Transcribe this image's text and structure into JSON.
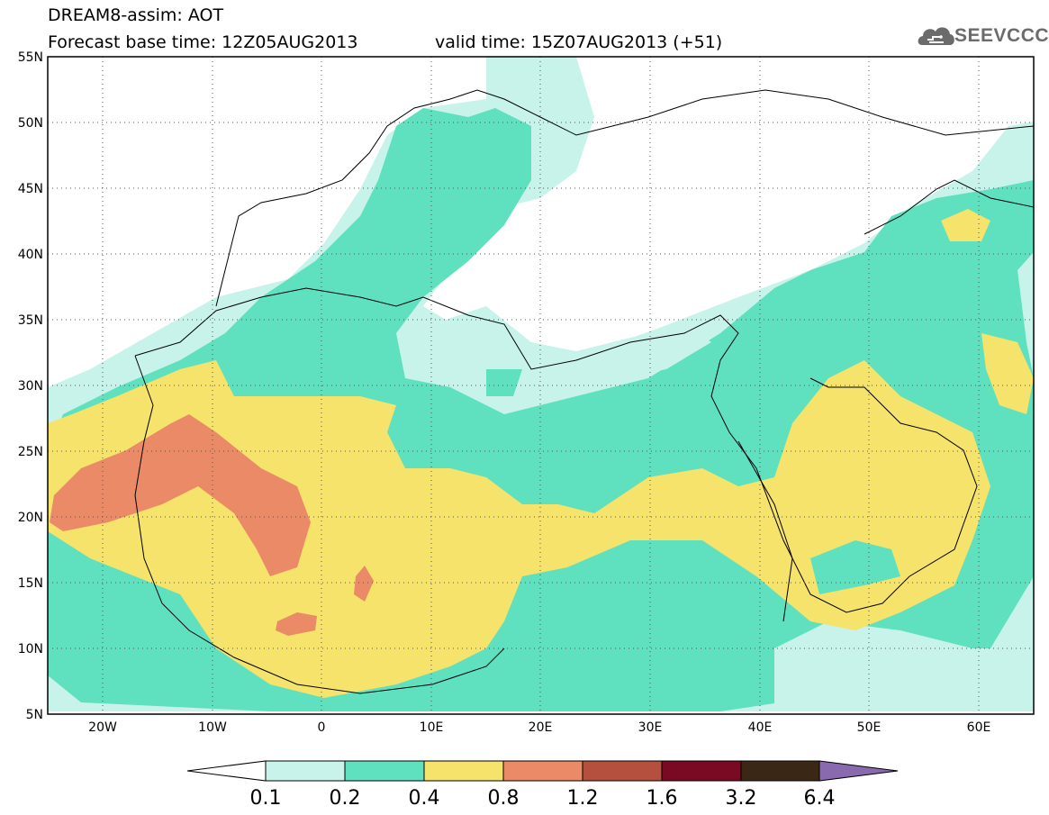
{
  "header": {
    "title": "DREAM8-assim: AOT",
    "forecast_base": "Forecast base time: 12Z05AUG2013",
    "valid_time": "valid time: 15Z07AUG2013 (+51)"
  },
  "logo": {
    "text": "SEEVCCC",
    "icon": "cloud-icon"
  },
  "map": {
    "lat_labels": [
      "55N",
      "50N",
      "45N",
      "40N",
      "35N",
      "30N",
      "25N",
      "20N",
      "15N",
      "10N",
      "5N"
    ],
    "lon_labels": [
      "20W",
      "10W",
      "0",
      "10E",
      "20E",
      "30E",
      "40E",
      "50E",
      "60E"
    ],
    "lat_range": [
      5,
      55
    ],
    "lon_range": [
      -25,
      65
    ],
    "grid": "dotted"
  },
  "colorbar": {
    "labels": [
      "0.1",
      "0.2",
      "0.4",
      "0.8",
      "1.2",
      "1.6",
      "3.2",
      "6.4"
    ],
    "colors": [
      "#c8f3ea",
      "#5fe0bf",
      "#f5e36c",
      "#ea8a66",
      "#b54f3e",
      "#7a0a24",
      "#3b2716",
      "#8a6aae"
    ]
  }
}
